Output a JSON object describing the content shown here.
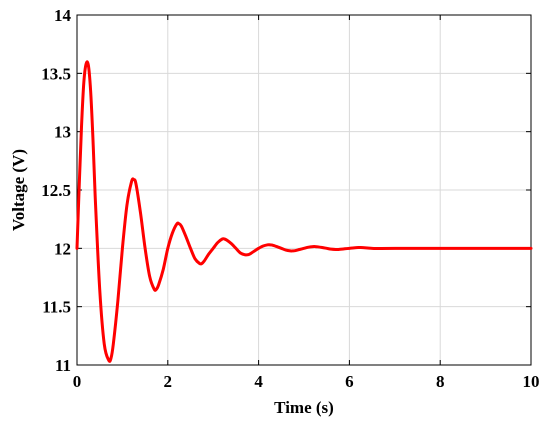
{
  "chart_data": {
    "type": "line",
    "title": "",
    "xlabel": "Time (s)",
    "ylabel": "Voltage (V)",
    "xlim": [
      0,
      10
    ],
    "ylim": [
      11,
      14
    ],
    "x_ticks": [
      0,
      2,
      4,
      6,
      8,
      10
    ],
    "x_tick_labels": [
      "0",
      "2",
      "4",
      "6",
      "8",
      "10"
    ],
    "y_ticks": [
      11,
      11.5,
      12,
      12.5,
      13,
      13.5,
      14
    ],
    "y_tick_labels": [
      "11",
      "11.5",
      "12",
      "12.5",
      "13",
      "13.5",
      "14"
    ],
    "grid": true,
    "legend": "none",
    "colors": {
      "line": "#ff0000",
      "axes": "#000000",
      "grid": "#d9d9d9"
    },
    "series": [
      {
        "color": "#ff0000",
        "x": [
          0,
          0.05,
          0.1,
          0.15,
          0.2,
          0.25,
          0.3,
          0.35,
          0.4,
          0.5,
          0.6,
          0.7,
          0.75,
          0.8,
          0.9,
          1.0,
          1.1,
          1.2,
          1.25,
          1.3,
          1.4,
          1.5,
          1.6,
          1.7,
          1.75,
          1.8,
          1.9,
          2.0,
          2.1,
          2.2,
          2.25,
          2.3,
          2.4,
          2.5,
          2.6,
          2.7,
          2.75,
          2.8,
          2.9,
          3.0,
          3.1,
          3.2,
          3.25,
          3.3,
          3.4,
          3.5,
          3.6,
          3.7,
          3.75,
          3.8,
          3.9,
          4.0,
          4.1,
          4.2,
          4.25,
          4.3,
          4.4,
          4.5,
          4.6,
          4.7,
          4.75,
          4.8,
          4.9,
          5.0,
          5.1,
          5.2,
          5.25,
          5.3,
          5.4,
          5.5,
          5.6,
          5.7,
          5.75,
          5.8,
          5.9,
          6.0,
          6.1,
          6.2,
          6.25,
          6.3,
          6.4,
          6.5,
          6.6,
          6.7,
          7.0,
          7.5,
          8.0,
          8.5,
          9.0,
          9.5,
          10.0
        ],
        "y": [
          12.0,
          12.55,
          13.05,
          13.42,
          13.58,
          13.57,
          13.35,
          12.95,
          12.45,
          11.65,
          11.18,
          11.04,
          11.06,
          11.18,
          11.55,
          12.0,
          12.37,
          12.57,
          12.59,
          12.55,
          12.3,
          12.0,
          11.76,
          11.65,
          11.65,
          11.69,
          11.82,
          12.0,
          12.13,
          12.21,
          12.21,
          12.19,
          12.1,
          12.0,
          11.91,
          11.87,
          11.87,
          11.89,
          11.95,
          12.0,
          12.05,
          12.08,
          12.08,
          12.07,
          12.04,
          12.0,
          11.96,
          11.945,
          11.945,
          11.95,
          11.975,
          12.0,
          12.02,
          12.03,
          12.03,
          12.028,
          12.015,
          12.0,
          11.985,
          11.978,
          11.978,
          11.98,
          11.99,
          12.0,
          12.01,
          12.015,
          12.015,
          12.013,
          12.007,
          12.0,
          11.993,
          11.99,
          11.99,
          11.992,
          11.996,
          12.0,
          12.004,
          12.007,
          12.007,
          12.006,
          12.003,
          12.0,
          11.999,
          11.999,
          12.0,
          12.0,
          12.0,
          12.0,
          12.0,
          12.0,
          12.0
        ]
      }
    ]
  }
}
